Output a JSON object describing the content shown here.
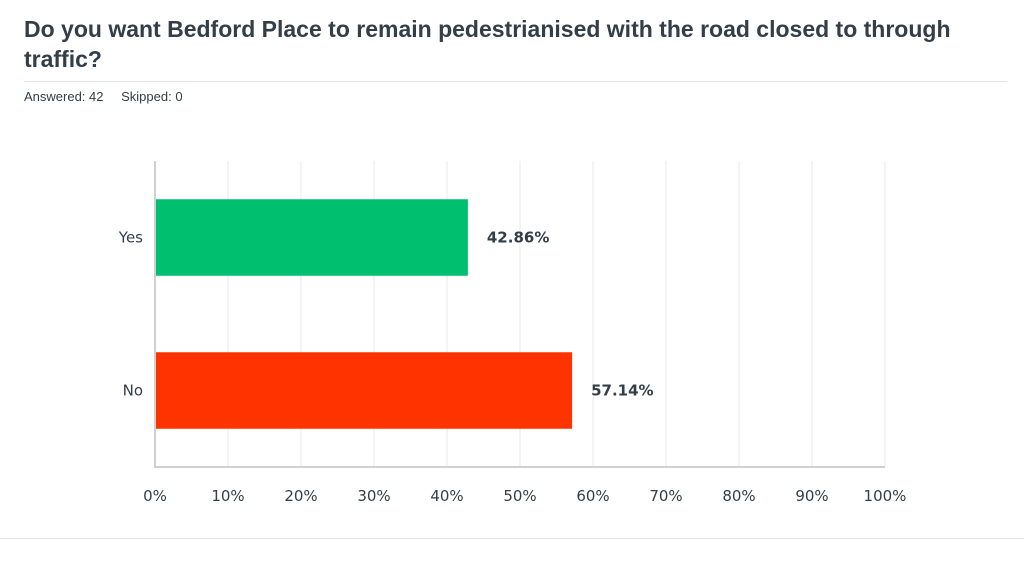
{
  "survey": {
    "question": "Do you want Bedford Place to remain pedestrianised with the road closed to through traffic?",
    "answered_label": "Answered: 42",
    "skipped_label": "Skipped: 0"
  },
  "chart_data": {
    "type": "bar",
    "orientation": "horizontal",
    "categories": [
      "Yes",
      "No"
    ],
    "values": [
      42.86,
      57.14
    ],
    "value_labels": [
      "42.86%",
      "57.14%"
    ],
    "colors": [
      "#00bf6f",
      "#ff3300"
    ],
    "xlim": [
      0,
      100
    ],
    "x_ticks": [
      "0%",
      "10%",
      "20%",
      "30%",
      "40%",
      "50%",
      "60%",
      "70%",
      "80%",
      "90%",
      "100%"
    ],
    "grid": true,
    "legend": "none"
  }
}
